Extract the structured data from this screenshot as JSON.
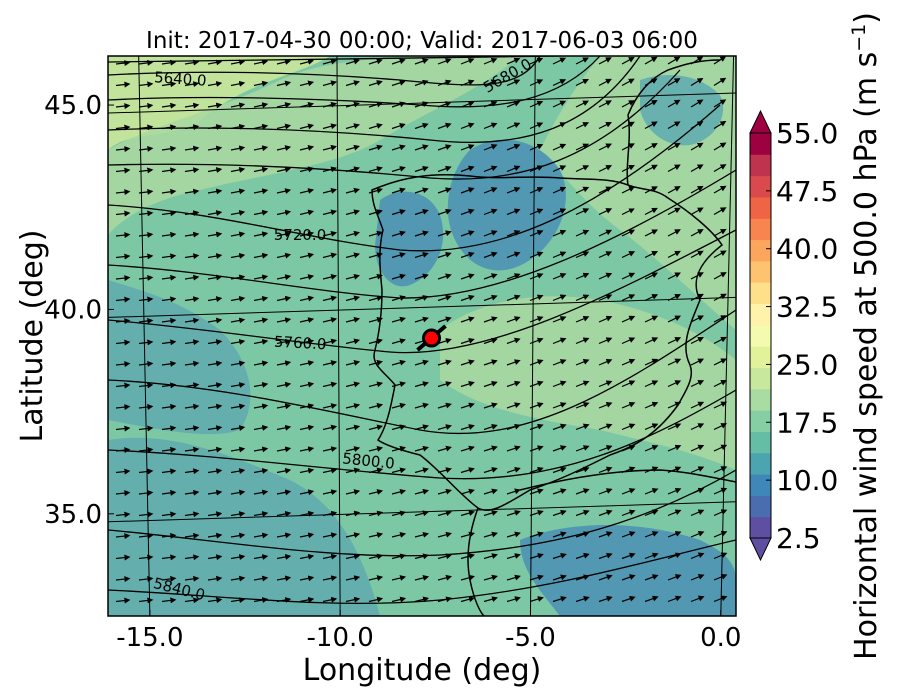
{
  "title": "Init: 2017-04-30 00:00; Valid: 2017-06-03 06:00",
  "x_axis": {
    "label": "Longitude (deg)",
    "ticks": [
      {
        "value": -15.0,
        "label": "-15.0"
      },
      {
        "value": -10.0,
        "label": "-10.0"
      },
      {
        "value": -5.0,
        "label": "-5.0"
      },
      {
        "value": 0.0,
        "label": "0.0"
      }
    ],
    "range": [
      -16.1,
      0.4
    ]
  },
  "y_axis": {
    "label": "Latitude (deg)",
    "ticks": [
      {
        "value": 45.0,
        "label": "45.0"
      },
      {
        "value": 40.0,
        "label": "40.0"
      },
      {
        "value": 35.0,
        "label": "35.0"
      }
    ],
    "range": [
      32.5,
      46.2
    ]
  },
  "colorbar": {
    "label": "Horizontal wind speed at 500.0 hPa (m s$^{-1}$)",
    "label_main": "Horizontal wind speed at 500.0 hPa (m s",
    "label_exp": "−1",
    "label_close": ")",
    "min": 2.5,
    "max": 55.0,
    "tick_labels": [
      "55.0",
      "47.5",
      "40.0",
      "32.5",
      "25.0",
      "17.5",
      "10.0",
      "2.5"
    ],
    "tick_values": [
      55.0,
      47.5,
      40.0,
      32.5,
      25.0,
      17.5,
      10.0,
      2.5
    ],
    "colors": [
      "#5e4fa2",
      "#4a6db0",
      "#3f87b9",
      "#4ca4b1",
      "#66bda5",
      "#86cfa5",
      "#a8dca2",
      "#c7e89d",
      "#e2f29a",
      "#f4fab0",
      "#fff2aa",
      "#fee08b",
      "#fdc370",
      "#fca55d",
      "#f8854f",
      "#ee6444",
      "#da4a4c",
      "#c0334f",
      "#9e0142"
    ],
    "extend": "both"
  },
  "contours": {
    "variable": "geopotential height 500 hPa",
    "labels": [
      {
        "value": "5640.0"
      },
      {
        "value": "5680.0"
      },
      {
        "value": "5720.0"
      },
      {
        "value": "5760.0"
      },
      {
        "value": "5800.0"
      },
      {
        "value": "5840.0"
      }
    ]
  },
  "marker": {
    "lon": -7.6,
    "lat": 39.3,
    "color": "#ff0000"
  },
  "wind_vectors": {
    "description": "predominantly westerly to south-westerly flow"
  },
  "fill_colors": {
    "background": "#7dc8a4",
    "dark": "#4a8fb6",
    "medium": "#5faab0",
    "light": "#a9d8a0",
    "pale": "#cce79a"
  }
}
